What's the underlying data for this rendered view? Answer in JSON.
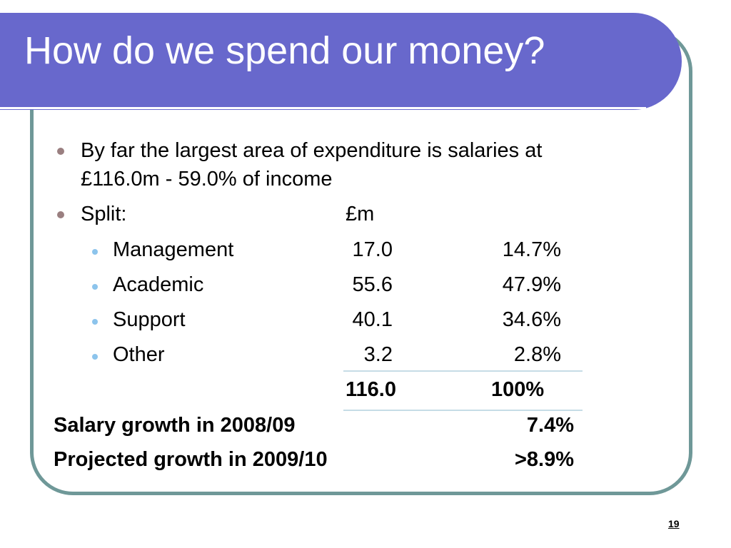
{
  "slide": {
    "title": "How do we spend our money?",
    "page_number": "19"
  },
  "intro": {
    "line1": "By far the largest area of expenditure is salaries at",
    "line2": "£116.0m - 59.0% of income"
  },
  "split": {
    "label": "Split:",
    "unit_header": "£m",
    "rows": [
      {
        "label": "Management",
        "amount": "17.0",
        "percent": "14.7%"
      },
      {
        "label": "Academic",
        "amount": "55.6",
        "percent": "47.9%"
      },
      {
        "label": "Support",
        "amount": "40.1",
        "percent": "34.6%"
      },
      {
        "label": "Other",
        "amount": "3.2",
        "percent": "2.8%"
      }
    ],
    "total": {
      "amount": "116.0",
      "percent": "100%"
    }
  },
  "growth": {
    "salary_label": "Salary growth in 2008/09",
    "salary_value": "7.4%",
    "projected_label": "Projected growth in 2009/10",
    "projected_value": ">8.9%"
  },
  "colors": {
    "title_bar": "#6868cc",
    "frame_border": "#6f9898",
    "level1_bullet": "#9a7f80",
    "level2_bullet": "#8cc4ec"
  }
}
